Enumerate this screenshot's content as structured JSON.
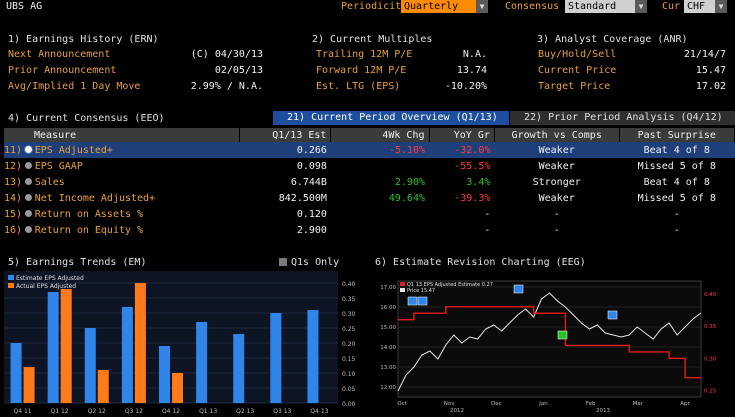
{
  "header": {
    "ticker": "UBS AG",
    "periodicity_label": "Periodicity",
    "periodicity_value": "Quarterly",
    "consensus_label": "Consensus",
    "consensus_value": "Standard",
    "currency_label": "Cur",
    "currency_value": "CHF"
  },
  "earnings_history": {
    "title": "1) Earnings History (ERN)",
    "rows": [
      {
        "label": "Next Announcement",
        "value": "(C)  04/30/13"
      },
      {
        "label": "Prior Announcement",
        "value": "02/05/13"
      },
      {
        "label": "Avg/Implied 1 Day Move",
        "value": "2.99% / N.A."
      }
    ]
  },
  "current_multiples": {
    "title": "2) Current Multiples",
    "rows": [
      {
        "label": "Trailing 12M P/E",
        "value": "N.A."
      },
      {
        "label": "Forward 12M P/E",
        "value": "13.74"
      },
      {
        "label": "Est. LTG (EPS)",
        "value": "-10.20%"
      }
    ]
  },
  "analyst_coverage": {
    "title": "3) Analyst Coverage (ANR)",
    "rows": [
      {
        "label": "Buy/Hold/Sell",
        "value": "21/14/7"
      },
      {
        "label": "Current Price",
        "value": "15.47"
      },
      {
        "label": "Target Price",
        "value": "17.02"
      }
    ]
  },
  "consensus": {
    "title": "4) Current Consensus (EEO)",
    "tab_current": "21) Current Period Overview (Q1/13)",
    "tab_prior": "22) Prior Period Analysis (Q4/12)",
    "columns": [
      "Measure",
      "Q1/13 Est",
      "4Wk Chg",
      "YoY Gr",
      "Growth vs Comps",
      "Past Surprise"
    ],
    "rows": [
      {
        "idx": "11)",
        "measure": "EPS Adjusted+",
        "est": "0.266",
        "chg4wk": "-5.10%",
        "yoy": "-32.0%",
        "comps": "Weaker",
        "surprise": "Beat 4 of 8",
        "selected": true
      },
      {
        "idx": "12)",
        "measure": "EPS GAAP",
        "est": "0.098",
        "chg4wk": "",
        "yoy": "-55.5%",
        "comps": "Weaker",
        "surprise": "Missed 5 of 8",
        "selected": false
      },
      {
        "idx": "13)",
        "measure": "Sales",
        "est": "6.744B",
        "chg4wk": "2.90%",
        "yoy": "3.4%",
        "comps": "Stronger",
        "surprise": "Beat 4 of 8",
        "selected": false
      },
      {
        "idx": "14)",
        "measure": "Net Income Adjusted+",
        "est": "842.500M",
        "chg4wk": "49.64%",
        "yoy": "-39.3%",
        "comps": "Weaker",
        "surprise": "Missed 5 of 8",
        "selected": false
      },
      {
        "idx": "15)",
        "measure": "Return on Assets %",
        "est": "0.120",
        "chg4wk": "",
        "yoy": "-",
        "comps": "-",
        "surprise": "-",
        "selected": false
      },
      {
        "idx": "16)",
        "measure": "Return on Equity %",
        "est": "2.900",
        "chg4wk": "",
        "yoy": "-",
        "comps": "-",
        "surprise": "-",
        "selected": false
      }
    ]
  },
  "earnings_trends": {
    "title": "5) Earnings Trends (EM)",
    "q1s_only": "Q1s Only"
  },
  "revision_charting": {
    "title": "6) Estimate Revision Charting (EEG)"
  },
  "colors": {
    "amber": "#e8a23a",
    "estimate_bar": "#2f86e8",
    "actual_bar": "#ff7a1a",
    "negative": "#ff3b3b",
    "positive": "#29c329",
    "selected_row": "#1f3f7a",
    "tab_active": "#1d4f9e"
  },
  "chart_data": [
    {
      "type": "bar",
      "legend": [
        "Estimate EPS Adjusted",
        "Actual EPS Adjusted"
      ],
      "categories": [
        "Q4 11",
        "Q1 12",
        "Q2 12",
        "Q3 12",
        "Q4 12",
        "Q1 13",
        "Q2 13",
        "Q3 13",
        "Q4 13"
      ],
      "series": [
        {
          "name": "Estimate EPS Adjusted",
          "values": [
            0.2,
            0.37,
            0.25,
            0.32,
            0.19,
            0.27,
            0.23,
            0.3,
            0.31
          ]
        },
        {
          "name": "Actual EPS Adjusted",
          "values": [
            0.12,
            0.38,
            0.11,
            0.4,
            0.1,
            null,
            null,
            null,
            null
          ]
        }
      ],
      "yticks": [
        "0.40",
        "0.35",
        "0.30",
        "0.25",
        "0.20",
        "0.15",
        "0.10",
        "0.05",
        "0.00"
      ],
      "ylim": [
        0,
        0.42
      ],
      "legend_position": "top-left"
    },
    {
      "type": "line",
      "legend": [
        "Q1 13 EPS Adjusted Estimate  0.27",
        "Price                               15.47"
      ],
      "x_ticks": [
        "Oct",
        "Nov",
        "Dec",
        "Jan",
        "Feb",
        "Mar",
        "Apr"
      ],
      "x_year_labels": [
        "2012",
        "2013"
      ],
      "y_left_ticks": [
        "17.00",
        "16.00",
        "15.00",
        "14.00",
        "13.00",
        "12.00"
      ],
      "y_right_ticks": [
        "0.40",
        "0.35",
        "0.30",
        "0.25"
      ],
      "series": [
        {
          "name": "Price",
          "values": [
            11.8,
            12.6,
            13.0,
            13.6,
            13.8,
            13.4,
            14.1,
            14.6,
            14.2,
            14.5,
            14.4,
            14.9,
            15.1,
            14.8,
            15.2,
            15.6,
            15.9,
            15.5,
            16.4,
            16.7,
            16.3,
            16.0,
            15.6,
            15.2,
            14.9,
            15.1,
            14.7,
            14.6,
            14.5,
            14.6,
            15.0,
            14.7,
            14.4,
            14.9,
            15.2,
            14.6,
            15.0,
            15.4,
            15.7
          ]
        },
        {
          "name": "Q1 13 EPS Adjusted Estimate",
          "values": [
            0.36,
            0.36,
            0.37,
            0.37,
            0.37,
            0.37,
            0.38,
            0.38,
            0.38,
            0.38,
            0.38,
            0.38,
            0.38,
            0.38,
            0.38,
            0.38,
            0.38,
            0.37,
            0.37,
            0.37,
            0.37,
            0.32,
            0.32,
            0.32,
            0.32,
            0.32,
            0.32,
            0.32,
            0.32,
            0.31,
            0.31,
            0.31,
            0.31,
            0.31,
            0.3,
            0.3,
            0.27,
            0.27,
            0.27
          ]
        }
      ]
    }
  ]
}
